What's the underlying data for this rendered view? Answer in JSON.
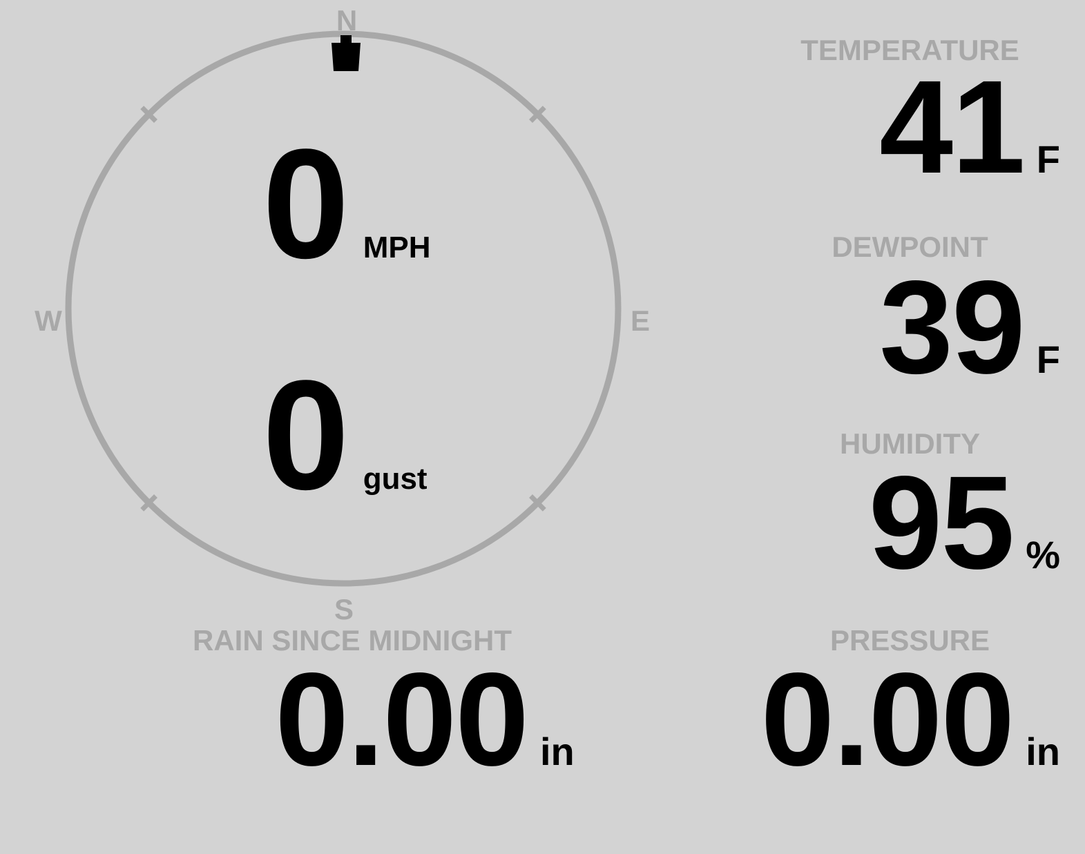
{
  "colors": {
    "background": "#d3d3d3",
    "muted": "#a8a8a8",
    "ink": "#000000"
  },
  "wind_dial": {
    "cardinals": {
      "n": "N",
      "e": "E",
      "s": "S",
      "w": "W"
    },
    "direction_marker_deg": 0,
    "speed": {
      "value": "0",
      "unit": "MPH"
    },
    "gust": {
      "value": "0",
      "unit": "gust"
    }
  },
  "metrics": {
    "temperature": {
      "label": "TEMPERATURE",
      "value": "41",
      "unit": "F"
    },
    "dewpoint": {
      "label": "DEWPOINT",
      "value": "39",
      "unit": "F"
    },
    "humidity": {
      "label": "HUMIDITY",
      "value": "95",
      "unit": "%"
    },
    "rain": {
      "label": "RAIN SINCE MIDNIGHT",
      "value": "0.00",
      "unit": "in"
    },
    "pressure": {
      "label": "PRESSURE",
      "value": "0.00",
      "unit": "in"
    }
  }
}
